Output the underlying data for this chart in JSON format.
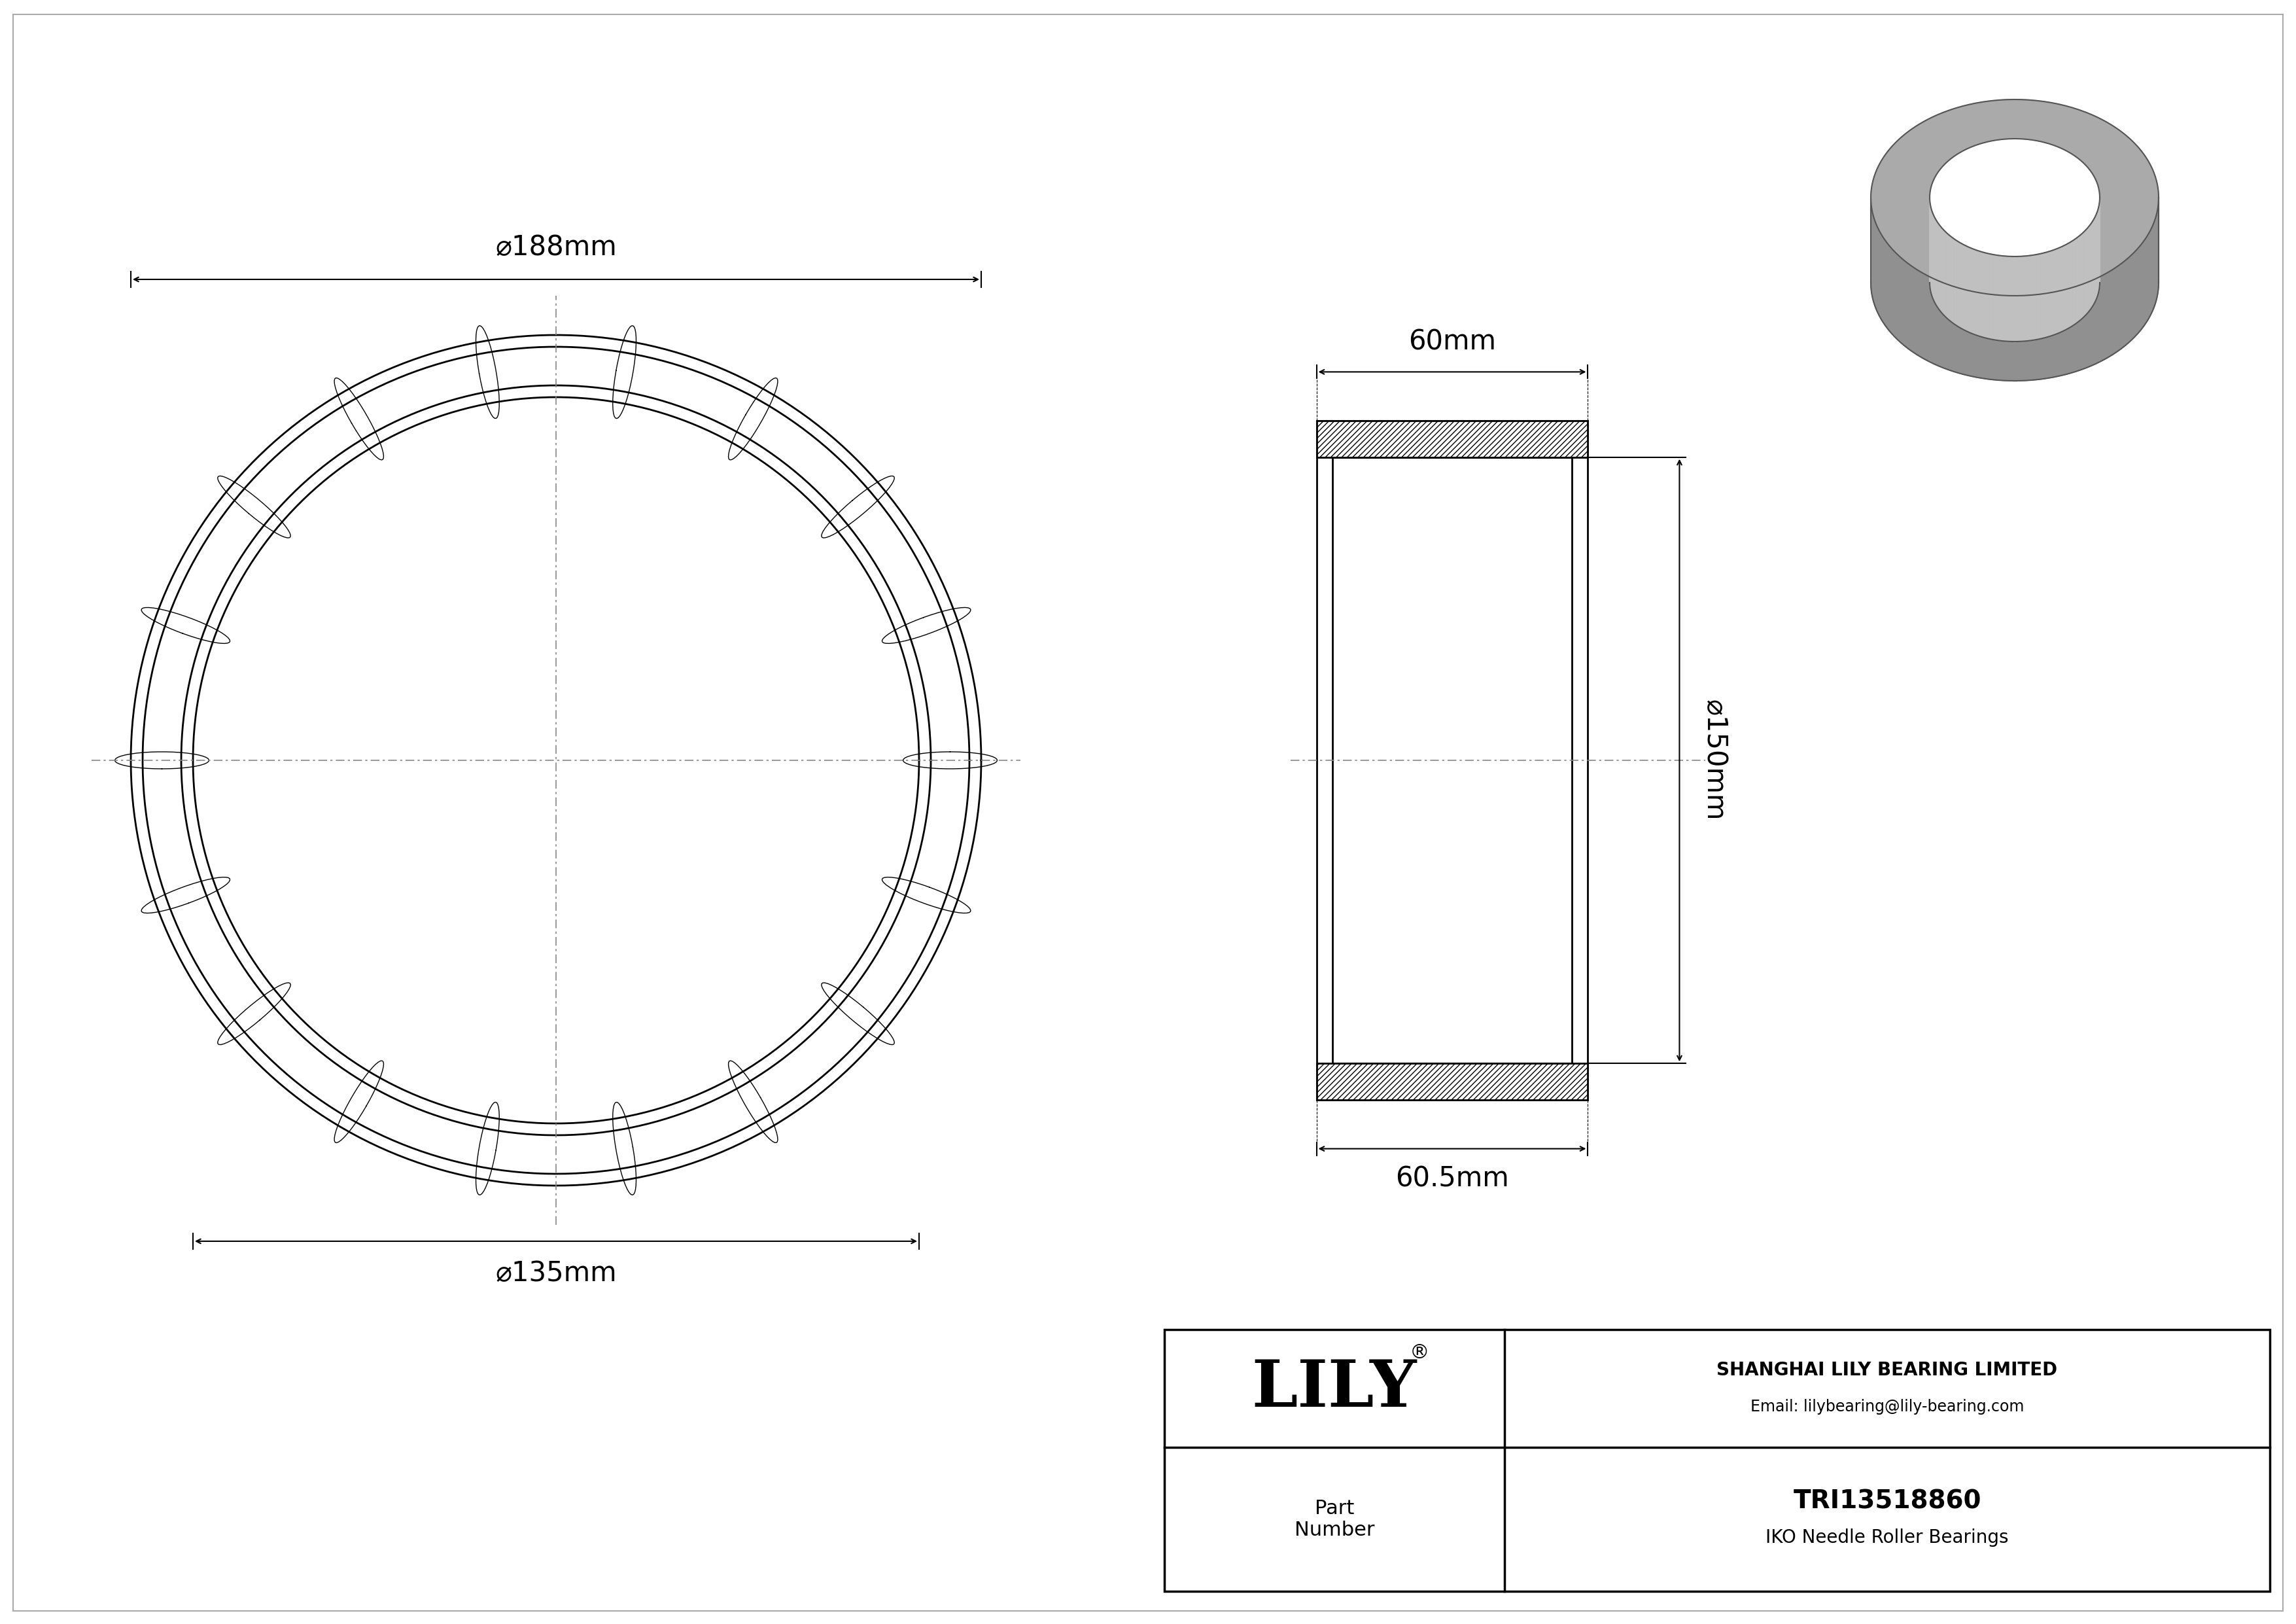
{
  "bg_color": "#ffffff",
  "line_color": "#000000",
  "dash_color": "#888888",
  "dim_od": "188mm",
  "dim_id": "135mm",
  "dim_width": "60mm",
  "dim_height": "150mm",
  "dim_bottom_width": "60.5mm",
  "company": "SHANGHAI LILY BEARING LIMITED",
  "email": "Email: lilybearing@lily-bearing.com",
  "part_label": "Part\nNumber",
  "part_number": "TRI13518860",
  "part_type": "IKO Needle Roller Bearings",
  "lily_text": "LILY",
  "lily_reg": "®",
  "gray_3d_top": "#aaaaaa",
  "gray_3d_outer": "#909090",
  "gray_3d_inner_wall": "#c0c0c0",
  "gray_3d_outline": "#555555",
  "outer_border_color": "#cccccc"
}
